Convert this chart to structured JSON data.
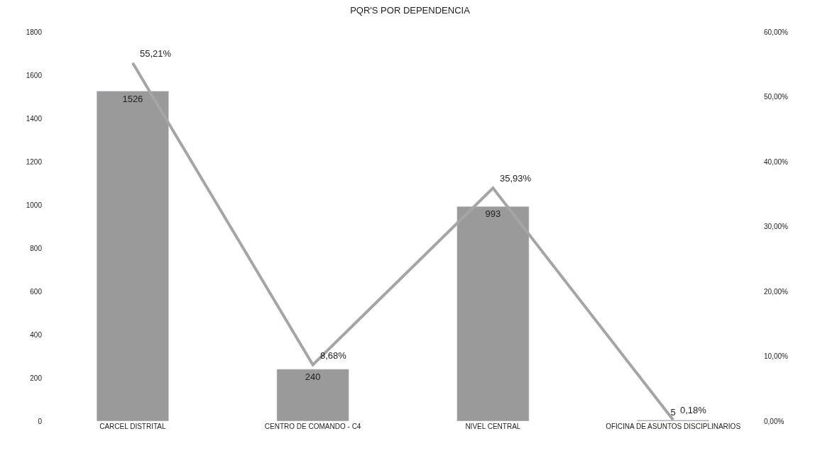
{
  "chart_data": {
    "type": "bar",
    "title": "PQR'S POR DEPENDENCIA",
    "categories": [
      "CARCEL DISTRITAL",
      "CENTRO DE COMANDO - C4",
      "NIVEL CENTRAL",
      "OFICINA DE ASUNTOS DISCIPLINARIOS"
    ],
    "series": [
      {
        "color": "#9a9a9a",
        "values": [
          1526,
          240,
          993,
          5
        ],
        "value_labels": [
          "1526",
          "240",
          "993",
          "5"
        ]
      },
      {
        "type": "line",
        "axis": "y2",
        "color": "#a5a5a5",
        "values": [
          55.21,
          8.68,
          35.93,
          0.18
        ],
        "value_labels": [
          "55,21%",
          "8,68%",
          "35,93%",
          "0,18%"
        ]
      }
    ],
    "ylim": [
      0,
      1800
    ],
    "yticks": [
      0,
      200,
      400,
      600,
      800,
      1000,
      1200,
      1400,
      1600,
      1800
    ],
    "y2lim": [
      0,
      60
    ],
    "y2ticks": [
      {
        "value": 0,
        "label": "0,00%"
      },
      {
        "value": 10,
        "label": "10,00%"
      },
      {
        "value": 20,
        "label": "20,00%"
      },
      {
        "value": 30,
        "label": "30,00%"
      },
      {
        "value": 40,
        "label": "40,00%"
      },
      {
        "value": 50,
        "label": "50,00%"
      },
      {
        "value": 60,
        "label": "60,00%"
      }
    ],
    "marker": "none",
    "line_style": "solid"
  }
}
